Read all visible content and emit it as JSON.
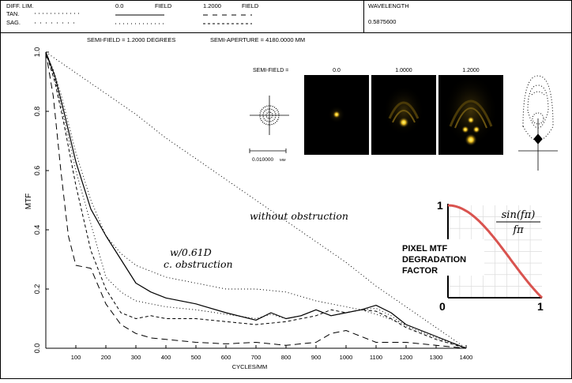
{
  "header": {
    "legend": {
      "diff_lim_label": "DIFF. LIM.",
      "tan_label": "TAN.",
      "sag_label": "SAG.",
      "field_1_value": "0.0",
      "field_1_label": "FIELD",
      "field_2_value": "1.2000",
      "field_2_label": "FIELD"
    },
    "wavelength_label": "WAVELENGTH",
    "wavelength_value": "0.5875600"
  },
  "info": {
    "semi_field": "SEMI-FIELD =  1.2000  DEGREES",
    "semi_aperture": "SEMI-APERTURE =  4180.0000  MM"
  },
  "psf": {
    "semi_field_label": "SEMI-FIELD =",
    "fields": [
      "0.0",
      "1.0000",
      "1.2000"
    ],
    "scale_label": "0.010000",
    "scale_unit": "MM"
  },
  "annotations": {
    "without_obstruction": "without obstruction",
    "with_obstruction_line1": "w/0.61D",
    "with_obstruction_line2": "c. obstruction"
  },
  "inset": {
    "title_line1": "PIXEL MTF",
    "title_line2": "DEGRADATION",
    "title_line3": "FACTOR",
    "formula_numerator": "sin(fπ)",
    "formula_denominator": "fπ",
    "y_tick": "1",
    "x_tick_0": "0",
    "x_tick_1": "1",
    "curve_color": "#d9534f"
  },
  "chart_data": {
    "type": "line",
    "xlabel": "CYCLES/MM",
    "ylabel": "MTF",
    "xlim": [
      0,
      1400
    ],
    "ylim": [
      0,
      1.0
    ],
    "x_ticks": [
      100,
      200,
      300,
      400,
      500,
      600,
      700,
      800,
      900,
      1000,
      1100,
      1200,
      1300,
      1400
    ],
    "y_ticks": [
      0.0,
      0.2,
      0.4,
      0.6,
      0.8,
      1.0
    ],
    "y_tick_labels": [
      "0.0",
      "0.2",
      "0.4",
      "0.6",
      "0.8",
      "1.0"
    ],
    "series": [
      {
        "key": "diff_lim_unobstructed",
        "style": "dotted",
        "x": [
          0,
          100,
          200,
          300,
          400,
          500,
          600,
          700,
          800,
          900,
          1000,
          1100,
          1200,
          1300,
          1400
        ],
        "y": [
          1.0,
          0.93,
          0.86,
          0.79,
          0.71,
          0.64,
          0.57,
          0.5,
          0.43,
          0.36,
          0.29,
          0.21,
          0.14,
          0.07,
          0.0
        ]
      },
      {
        "key": "diff_lim_obstructed",
        "style": "dotted",
        "x": [
          0,
          25,
          50,
          100,
          150,
          200,
          250,
          300,
          400,
          500,
          600,
          700,
          800,
          900,
          1000,
          1050,
          1100,
          1200,
          1300,
          1400
        ],
        "y": [
          1.0,
          0.94,
          0.86,
          0.66,
          0.5,
          0.38,
          0.32,
          0.28,
          0.24,
          0.22,
          0.2,
          0.2,
          0.19,
          0.16,
          0.14,
          0.13,
          0.115,
          0.08,
          0.04,
          0.0
        ]
      },
      {
        "key": "field_0_tan",
        "style": "solid",
        "x": [
          0,
          30,
          60,
          100,
          150,
          200,
          250,
          300,
          350,
          400,
          500,
          600,
          700,
          750,
          800,
          850,
          900,
          950,
          1000,
          1050,
          1100,
          1150,
          1200,
          1300,
          1400
        ],
        "y": [
          1.0,
          0.92,
          0.8,
          0.63,
          0.47,
          0.38,
          0.3,
          0.22,
          0.19,
          0.17,
          0.15,
          0.12,
          0.095,
          0.12,
          0.1,
          0.11,
          0.13,
          0.11,
          0.12,
          0.13,
          0.145,
          0.12,
          0.08,
          0.04,
          0.0
        ]
      },
      {
        "key": "field_0_sag",
        "style": "dotted",
        "x": [
          0,
          30,
          60,
          100,
          150,
          200,
          250,
          300,
          350,
          400,
          500,
          600,
          700,
          750,
          800,
          850,
          900,
          950,
          1000,
          1050,
          1100,
          1150,
          1200,
          1300,
          1400
        ],
        "y": [
          1.0,
          0.91,
          0.78,
          0.6,
          0.42,
          0.24,
          0.19,
          0.16,
          0.15,
          0.14,
          0.13,
          0.115,
          0.1,
          0.115,
          0.1,
          0.11,
          0.13,
          0.11,
          0.12,
          0.13,
          0.135,
          0.11,
          0.075,
          0.035,
          0.0
        ]
      },
      {
        "key": "field_1_2_tan",
        "style": "dashed",
        "x": [
          0,
          30,
          60,
          100,
          150,
          200,
          250,
          300,
          350,
          400,
          500,
          600,
          700,
          800,
          900,
          950,
          1000,
          1050,
          1100,
          1150,
          1200,
          1300,
          1400
        ],
        "y": [
          1.0,
          0.9,
          0.76,
          0.55,
          0.33,
          0.2,
          0.12,
          0.1,
          0.11,
          0.1,
          0.1,
          0.09,
          0.08,
          0.09,
          0.11,
          0.13,
          0.12,
          0.13,
          0.125,
          0.1,
          0.07,
          0.03,
          0.0
        ]
      },
      {
        "key": "field_1_2_sag",
        "style": "long-dashed",
        "x": [
          0,
          25,
          50,
          75,
          100,
          150,
          200,
          250,
          300,
          350,
          400,
          500,
          600,
          700,
          800,
          900,
          950,
          1000,
          1050,
          1100,
          1200,
          1300,
          1400
        ],
        "y": [
          1.0,
          0.85,
          0.6,
          0.38,
          0.28,
          0.27,
          0.15,
          0.08,
          0.05,
          0.035,
          0.03,
          0.02,
          0.015,
          0.02,
          0.01,
          0.02,
          0.05,
          0.06,
          0.04,
          0.02,
          0.02,
          0.01,
          0.0
        ]
      }
    ]
  }
}
